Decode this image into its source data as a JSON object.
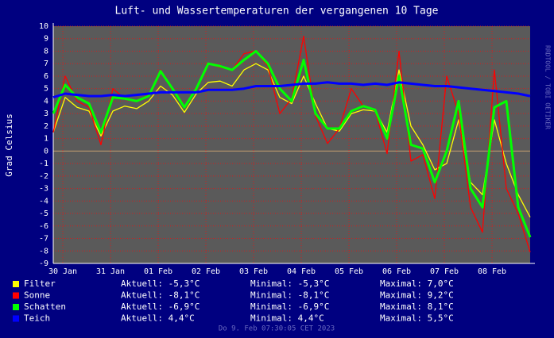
{
  "chart_data": {
    "type": "line",
    "title": "Luft- und Wassertemperaturen der vergangenen 10 Tage",
    "y_label": "Grad Celsius",
    "side_text": "RRDTOOL / TOBI OETIKER",
    "footer": "Do 9. Feb 07:30:05 CET 2023",
    "x": [
      -0.2,
      0.05,
      0.3,
      0.55,
      0.8,
      1.05,
      1.3,
      1.55,
      1.8,
      2.05,
      2.3,
      2.55,
      2.8,
      3.05,
      3.3,
      3.55,
      3.8,
      4.05,
      4.3,
      4.55,
      4.8,
      5.05,
      5.3,
      5.55,
      5.8,
      6.05,
      6.3,
      6.55,
      6.8,
      7.05,
      7.3,
      7.55,
      7.8,
      8.05,
      8.3,
      8.55,
      8.8,
      9.05,
      9.3,
      9.55,
      9.8
    ],
    "xlim": [
      -0.2,
      9.8
    ],
    "xticks": [
      {
        "value": 0,
        "label": "30 Jan"
      },
      {
        "value": 1,
        "label": "31 Jan"
      },
      {
        "value": 2,
        "label": "01 Feb"
      },
      {
        "value": 3,
        "label": "02 Feb"
      },
      {
        "value": 4,
        "label": "03 Feb"
      },
      {
        "value": 5,
        "label": "04 Feb"
      },
      {
        "value": 6,
        "label": "05 Feb"
      },
      {
        "value": 7,
        "label": "06 Feb"
      },
      {
        "value": 8,
        "label": "07 Feb"
      },
      {
        "value": 9,
        "label": "08 Feb"
      }
    ],
    "ylim": [
      -9,
      10
    ],
    "yticks": [
      -9,
      -8,
      -7,
      -6,
      -5,
      -4,
      -3,
      -2,
      -1,
      0,
      1,
      2,
      3,
      4,
      5,
      6,
      7,
      8,
      9,
      10
    ],
    "grid": true,
    "series": [
      {
        "name": "Filter",
        "color": "#ffff00",
        "stats": [
          "Aktuell: -5,3°C",
          "Minimal: -5,3°C",
          "Maximal: 7,0°C"
        ],
        "values": [
          1.5,
          4.3,
          3.5,
          3.2,
          1.2,
          3.2,
          3.6,
          3.4,
          4.0,
          5.2,
          4.5,
          3.1,
          4.6,
          5.5,
          5.6,
          5.2,
          6.5,
          7.0,
          6.5,
          4.3,
          3.8,
          6.0,
          3.8,
          1.8,
          1.6,
          3.0,
          3.3,
          3.2,
          1.5,
          6.5,
          2.0,
          0.5,
          -1.5,
          -1.0,
          2.5,
          -2.5,
          -3.5,
          2.5,
          -1.0,
          -3.5,
          -5.3
        ]
      },
      {
        "name": "Sonne",
        "color": "#ff0000",
        "stats": [
          "Aktuell: -8,1°C",
          "Minimal: -8,1°C",
          "Maximal: 9,2°C"
        ],
        "values": [
          1.5,
          6.0,
          4.0,
          3.5,
          0.5,
          5.0,
          4.2,
          4.0,
          4.5,
          6.5,
          5.0,
          3.5,
          5.0,
          7.0,
          6.7,
          6.5,
          7.8,
          8.0,
          6.8,
          3.0,
          4.2,
          9.2,
          2.8,
          0.6,
          1.8,
          5.0,
          3.6,
          3.2,
          -0.2,
          8.0,
          -0.8,
          -0.3,
          -3.8,
          6.0,
          3.0,
          -4.5,
          -6.5,
          6.5,
          -3.0,
          -5.0,
          -8.1
        ]
      },
      {
        "name": "Schatten",
        "color": "#00ff00",
        "stats": [
          "Aktuell: -6,9°C",
          "Minimal: -6,9°C",
          "Maximal: 8,1°C"
        ],
        "values": [
          3.0,
          5.3,
          4.3,
          3.8,
          1.5,
          4.3,
          4.2,
          4.0,
          4.4,
          6.4,
          5.0,
          3.5,
          5.0,
          7.0,
          6.8,
          6.5,
          7.3,
          8.0,
          7.0,
          5.0,
          4.0,
          7.3,
          3.0,
          1.8,
          1.8,
          3.2,
          3.6,
          3.3,
          1.0,
          6.0,
          0.5,
          0.2,
          -2.5,
          0.0,
          4.0,
          -3.0,
          -4.5,
          3.5,
          4.0,
          -4.5,
          -6.9
        ]
      },
      {
        "name": "Teich",
        "color": "#0000ff",
        "stats": [
          "Aktuell: 4,4°C",
          "Minimal: 4,4°C",
          "Maximal: 5,5°C"
        ],
        "values": [
          4.3,
          4.6,
          4.5,
          4.4,
          4.4,
          4.5,
          4.4,
          4.5,
          4.6,
          4.7,
          4.7,
          4.7,
          4.7,
          4.9,
          4.9,
          4.9,
          5.0,
          5.2,
          5.2,
          5.2,
          5.3,
          5.4,
          5.4,
          5.5,
          5.4,
          5.4,
          5.3,
          5.4,
          5.3,
          5.5,
          5.4,
          5.3,
          5.2,
          5.2,
          5.1,
          5.0,
          4.9,
          4.8,
          4.7,
          4.6,
          4.4
        ]
      }
    ]
  }
}
